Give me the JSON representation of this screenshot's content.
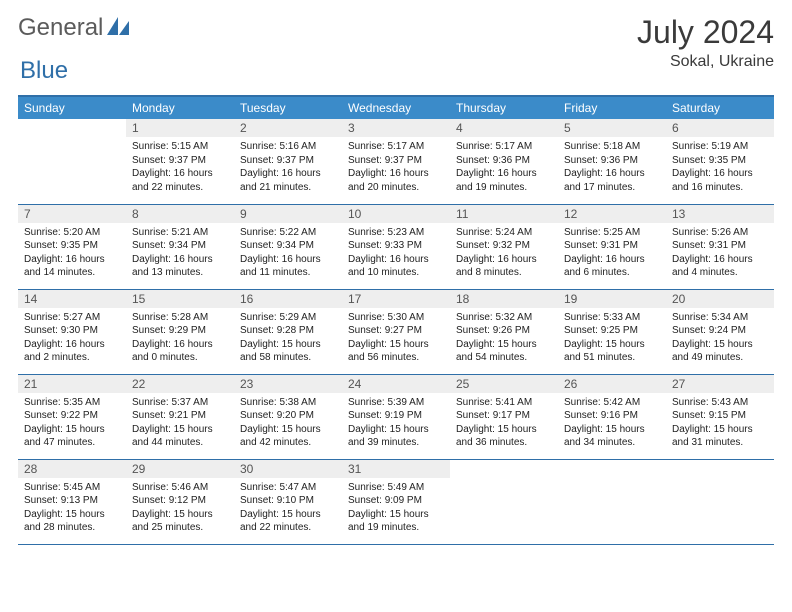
{
  "logo": {
    "text1": "General",
    "text2": "Blue"
  },
  "title": "July 2024",
  "location": "Sokal, Ukraine",
  "colors": {
    "header_bg": "#3b8bc9",
    "header_text": "#ffffff",
    "border": "#2f6fa8",
    "daynum_bg": "#eeeeee",
    "daynum_text": "#555555",
    "body_text": "#222222",
    "logo_gray": "#5b5b5b",
    "logo_blue": "#2f6fa8",
    "title_color": "#3a3a3a"
  },
  "typography": {
    "title_fontsize": 32,
    "location_fontsize": 16,
    "dow_fontsize": 12,
    "daynum_fontsize": 12,
    "cell_fontsize": 10
  },
  "dow": [
    "Sunday",
    "Monday",
    "Tuesday",
    "Wednesday",
    "Thursday",
    "Friday",
    "Saturday"
  ],
  "weeks": [
    [
      null,
      {
        "n": "1",
        "sr": "Sunrise: 5:15 AM",
        "ss": "Sunset: 9:37 PM",
        "d1": "Daylight: 16 hours",
        "d2": "and 22 minutes."
      },
      {
        "n": "2",
        "sr": "Sunrise: 5:16 AM",
        "ss": "Sunset: 9:37 PM",
        "d1": "Daylight: 16 hours",
        "d2": "and 21 minutes."
      },
      {
        "n": "3",
        "sr": "Sunrise: 5:17 AM",
        "ss": "Sunset: 9:37 PM",
        "d1": "Daylight: 16 hours",
        "d2": "and 20 minutes."
      },
      {
        "n": "4",
        "sr": "Sunrise: 5:17 AM",
        "ss": "Sunset: 9:36 PM",
        "d1": "Daylight: 16 hours",
        "d2": "and 19 minutes."
      },
      {
        "n": "5",
        "sr": "Sunrise: 5:18 AM",
        "ss": "Sunset: 9:36 PM",
        "d1": "Daylight: 16 hours",
        "d2": "and 17 minutes."
      },
      {
        "n": "6",
        "sr": "Sunrise: 5:19 AM",
        "ss": "Sunset: 9:35 PM",
        "d1": "Daylight: 16 hours",
        "d2": "and 16 minutes."
      }
    ],
    [
      {
        "n": "7",
        "sr": "Sunrise: 5:20 AM",
        "ss": "Sunset: 9:35 PM",
        "d1": "Daylight: 16 hours",
        "d2": "and 14 minutes."
      },
      {
        "n": "8",
        "sr": "Sunrise: 5:21 AM",
        "ss": "Sunset: 9:34 PM",
        "d1": "Daylight: 16 hours",
        "d2": "and 13 minutes."
      },
      {
        "n": "9",
        "sr": "Sunrise: 5:22 AM",
        "ss": "Sunset: 9:34 PM",
        "d1": "Daylight: 16 hours",
        "d2": "and 11 minutes."
      },
      {
        "n": "10",
        "sr": "Sunrise: 5:23 AM",
        "ss": "Sunset: 9:33 PM",
        "d1": "Daylight: 16 hours",
        "d2": "and 10 minutes."
      },
      {
        "n": "11",
        "sr": "Sunrise: 5:24 AM",
        "ss": "Sunset: 9:32 PM",
        "d1": "Daylight: 16 hours",
        "d2": "and 8 minutes."
      },
      {
        "n": "12",
        "sr": "Sunrise: 5:25 AM",
        "ss": "Sunset: 9:31 PM",
        "d1": "Daylight: 16 hours",
        "d2": "and 6 minutes."
      },
      {
        "n": "13",
        "sr": "Sunrise: 5:26 AM",
        "ss": "Sunset: 9:31 PM",
        "d1": "Daylight: 16 hours",
        "d2": "and 4 minutes."
      }
    ],
    [
      {
        "n": "14",
        "sr": "Sunrise: 5:27 AM",
        "ss": "Sunset: 9:30 PM",
        "d1": "Daylight: 16 hours",
        "d2": "and 2 minutes."
      },
      {
        "n": "15",
        "sr": "Sunrise: 5:28 AM",
        "ss": "Sunset: 9:29 PM",
        "d1": "Daylight: 16 hours",
        "d2": "and 0 minutes."
      },
      {
        "n": "16",
        "sr": "Sunrise: 5:29 AM",
        "ss": "Sunset: 9:28 PM",
        "d1": "Daylight: 15 hours",
        "d2": "and 58 minutes."
      },
      {
        "n": "17",
        "sr": "Sunrise: 5:30 AM",
        "ss": "Sunset: 9:27 PM",
        "d1": "Daylight: 15 hours",
        "d2": "and 56 minutes."
      },
      {
        "n": "18",
        "sr": "Sunrise: 5:32 AM",
        "ss": "Sunset: 9:26 PM",
        "d1": "Daylight: 15 hours",
        "d2": "and 54 minutes."
      },
      {
        "n": "19",
        "sr": "Sunrise: 5:33 AM",
        "ss": "Sunset: 9:25 PM",
        "d1": "Daylight: 15 hours",
        "d2": "and 51 minutes."
      },
      {
        "n": "20",
        "sr": "Sunrise: 5:34 AM",
        "ss": "Sunset: 9:24 PM",
        "d1": "Daylight: 15 hours",
        "d2": "and 49 minutes."
      }
    ],
    [
      {
        "n": "21",
        "sr": "Sunrise: 5:35 AM",
        "ss": "Sunset: 9:22 PM",
        "d1": "Daylight: 15 hours",
        "d2": "and 47 minutes."
      },
      {
        "n": "22",
        "sr": "Sunrise: 5:37 AM",
        "ss": "Sunset: 9:21 PM",
        "d1": "Daylight: 15 hours",
        "d2": "and 44 minutes."
      },
      {
        "n": "23",
        "sr": "Sunrise: 5:38 AM",
        "ss": "Sunset: 9:20 PM",
        "d1": "Daylight: 15 hours",
        "d2": "and 42 minutes."
      },
      {
        "n": "24",
        "sr": "Sunrise: 5:39 AM",
        "ss": "Sunset: 9:19 PM",
        "d1": "Daylight: 15 hours",
        "d2": "and 39 minutes."
      },
      {
        "n": "25",
        "sr": "Sunrise: 5:41 AM",
        "ss": "Sunset: 9:17 PM",
        "d1": "Daylight: 15 hours",
        "d2": "and 36 minutes."
      },
      {
        "n": "26",
        "sr": "Sunrise: 5:42 AM",
        "ss": "Sunset: 9:16 PM",
        "d1": "Daylight: 15 hours",
        "d2": "and 34 minutes."
      },
      {
        "n": "27",
        "sr": "Sunrise: 5:43 AM",
        "ss": "Sunset: 9:15 PM",
        "d1": "Daylight: 15 hours",
        "d2": "and 31 minutes."
      }
    ],
    [
      {
        "n": "28",
        "sr": "Sunrise: 5:45 AM",
        "ss": "Sunset: 9:13 PM",
        "d1": "Daylight: 15 hours",
        "d2": "and 28 minutes."
      },
      {
        "n": "29",
        "sr": "Sunrise: 5:46 AM",
        "ss": "Sunset: 9:12 PM",
        "d1": "Daylight: 15 hours",
        "d2": "and 25 minutes."
      },
      {
        "n": "30",
        "sr": "Sunrise: 5:47 AM",
        "ss": "Sunset: 9:10 PM",
        "d1": "Daylight: 15 hours",
        "d2": "and 22 minutes."
      },
      {
        "n": "31",
        "sr": "Sunrise: 5:49 AM",
        "ss": "Sunset: 9:09 PM",
        "d1": "Daylight: 15 hours",
        "d2": "and 19 minutes."
      },
      null,
      null,
      null
    ]
  ]
}
